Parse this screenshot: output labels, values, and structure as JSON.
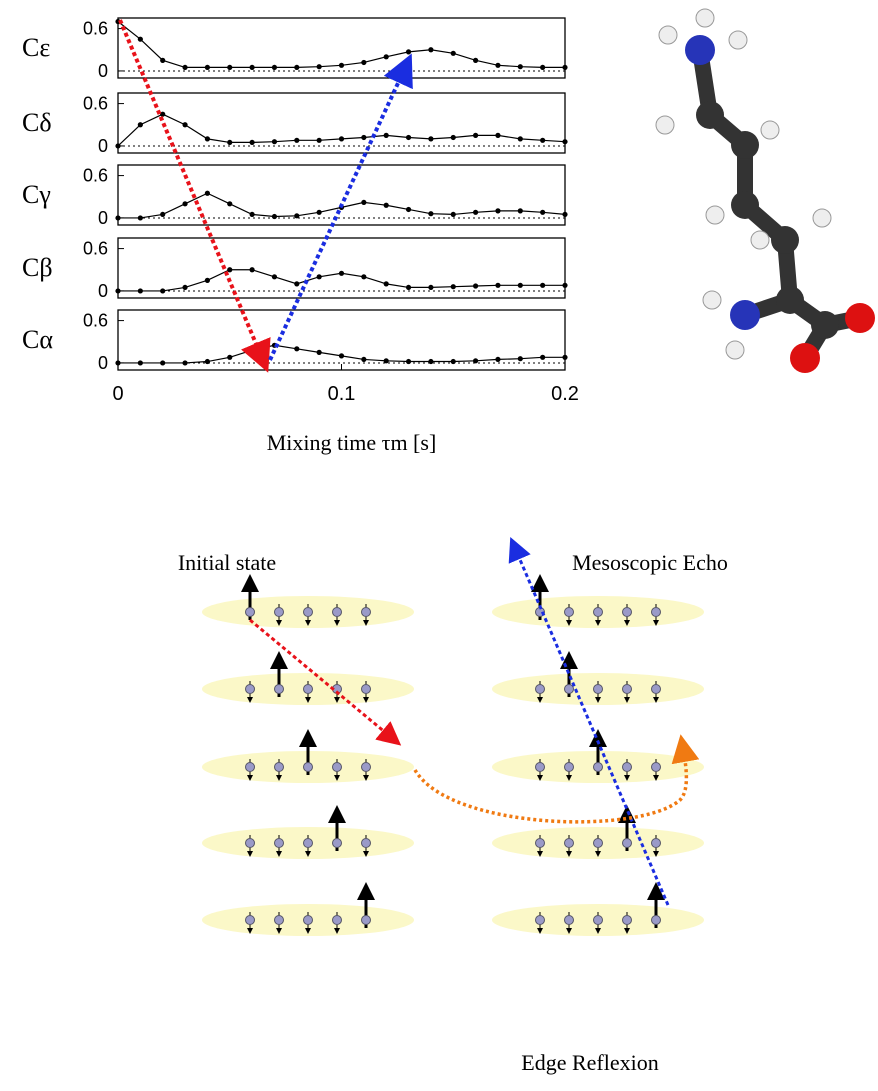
{
  "chart_data": [
    {
      "type": "line",
      "ylabel": "Cε",
      "xlim": [
        0,
        0.2
      ],
      "ylim": [
        -0.1,
        0.75
      ],
      "yticks": [
        0,
        0.6
      ],
      "x": [
        0,
        0.01,
        0.02,
        0.03,
        0.04,
        0.05,
        0.06,
        0.07,
        0.08,
        0.09,
        0.1,
        0.11,
        0.12,
        0.13,
        0.14,
        0.15,
        0.16,
        0.17,
        0.18,
        0.19,
        0.2
      ],
      "values": [
        0.7,
        0.45,
        0.15,
        0.05,
        0.05,
        0.05,
        0.05,
        0.05,
        0.05,
        0.06,
        0.08,
        0.12,
        0.2,
        0.27,
        0.3,
        0.25,
        0.15,
        0.08,
        0.06,
        0.05,
        0.05
      ]
    },
    {
      "type": "line",
      "ylabel": "Cδ",
      "xlim": [
        0,
        0.2
      ],
      "ylim": [
        -0.1,
        0.75
      ],
      "yticks": [
        0,
        0.6
      ],
      "x": [
        0,
        0.01,
        0.02,
        0.03,
        0.04,
        0.05,
        0.06,
        0.07,
        0.08,
        0.09,
        0.1,
        0.11,
        0.12,
        0.13,
        0.14,
        0.15,
        0.16,
        0.17,
        0.18,
        0.19,
        0.2
      ],
      "values": [
        0,
        0.3,
        0.45,
        0.3,
        0.1,
        0.05,
        0.05,
        0.06,
        0.08,
        0.08,
        0.1,
        0.12,
        0.15,
        0.12,
        0.1,
        0.12,
        0.15,
        0.15,
        0.1,
        0.08,
        0.06
      ]
    },
    {
      "type": "line",
      "ylabel": "Cγ",
      "xlim": [
        0,
        0.2
      ],
      "ylim": [
        -0.1,
        0.75
      ],
      "yticks": [
        0,
        0.6
      ],
      "x": [
        0,
        0.01,
        0.02,
        0.03,
        0.04,
        0.05,
        0.06,
        0.07,
        0.08,
        0.09,
        0.1,
        0.11,
        0.12,
        0.13,
        0.14,
        0.15,
        0.16,
        0.17,
        0.18,
        0.19,
        0.2
      ],
      "values": [
        0,
        0,
        0.05,
        0.2,
        0.35,
        0.2,
        0.05,
        0.02,
        0.03,
        0.08,
        0.15,
        0.22,
        0.18,
        0.12,
        0.06,
        0.05,
        0.08,
        0.1,
        0.1,
        0.08,
        0.05
      ]
    },
    {
      "type": "line",
      "ylabel": "Cβ",
      "xlim": [
        0,
        0.2
      ],
      "ylim": [
        -0.1,
        0.75
      ],
      "yticks": [
        0,
        0.6
      ],
      "x": [
        0,
        0.01,
        0.02,
        0.03,
        0.04,
        0.05,
        0.06,
        0.07,
        0.08,
        0.09,
        0.1,
        0.11,
        0.12,
        0.13,
        0.14,
        0.15,
        0.16,
        0.17,
        0.18,
        0.19,
        0.2
      ],
      "values": [
        0,
        0,
        0,
        0.05,
        0.15,
        0.3,
        0.3,
        0.2,
        0.1,
        0.2,
        0.25,
        0.2,
        0.1,
        0.05,
        0.05,
        0.06,
        0.07,
        0.08,
        0.08,
        0.08,
        0.08
      ]
    },
    {
      "type": "line",
      "ylabel": "Cα",
      "xlim": [
        0,
        0.2
      ],
      "ylim": [
        -0.1,
        0.75
      ],
      "yticks": [
        0,
        0.6
      ],
      "xticks": [
        0,
        0.1,
        0.2
      ],
      "xlabel": "Mixing time τm [s]",
      "x": [
        0,
        0.01,
        0.02,
        0.03,
        0.04,
        0.05,
        0.06,
        0.07,
        0.08,
        0.09,
        0.1,
        0.11,
        0.12,
        0.13,
        0.14,
        0.15,
        0.16,
        0.17,
        0.18,
        0.19,
        0.2
      ],
      "values": [
        0,
        0,
        0,
        0,
        0.02,
        0.08,
        0.18,
        0.25,
        0.2,
        0.15,
        0.1,
        0.05,
        0.03,
        0.02,
        0.02,
        0.02,
        0.03,
        0.05,
        0.06,
        0.08,
        0.08
      ]
    }
  ],
  "diagram": {
    "initial": "Initial state",
    "echo": "Mesoscopic Echo",
    "reflexion": "Edge Reflexion"
  }
}
